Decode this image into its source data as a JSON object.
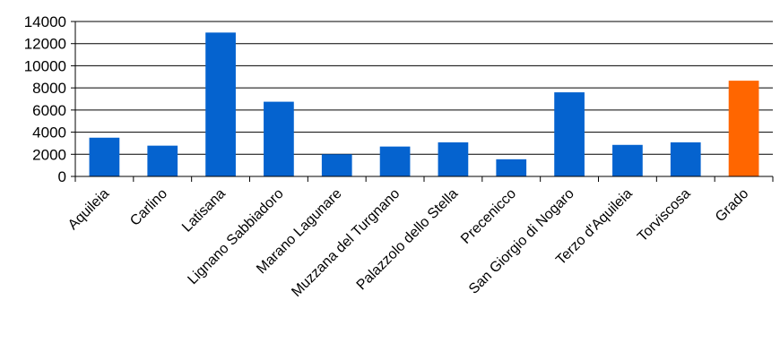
{
  "chart_data": {
    "type": "bar",
    "categories": [
      "Aquileia",
      "Carlino",
      "Latisana",
      "Lignano Sabbiadoro",
      "Marano Lagunare",
      "Muzzana del Turgnano",
      "Palazzolo dello Stella",
      "Precenicco",
      "San Giorgio di Nogaro",
      "Terzo d'Aquileia",
      "Torviscosa",
      "Grado"
    ],
    "values": [
      3500,
      2780,
      13000,
      6750,
      2000,
      2700,
      3080,
      1550,
      7600,
      2850,
      3080,
      8650
    ],
    "ylim": [
      0,
      14000
    ],
    "yticks": [
      0,
      2000,
      4000,
      6000,
      8000,
      10000,
      12000,
      14000
    ],
    "grid": true,
    "legend": "none",
    "colors": {
      "bar": "#0563cf",
      "highlight": "#ff6600",
      "highlight_index": 11,
      "grid": "#000000",
      "axis": "#000000"
    }
  }
}
